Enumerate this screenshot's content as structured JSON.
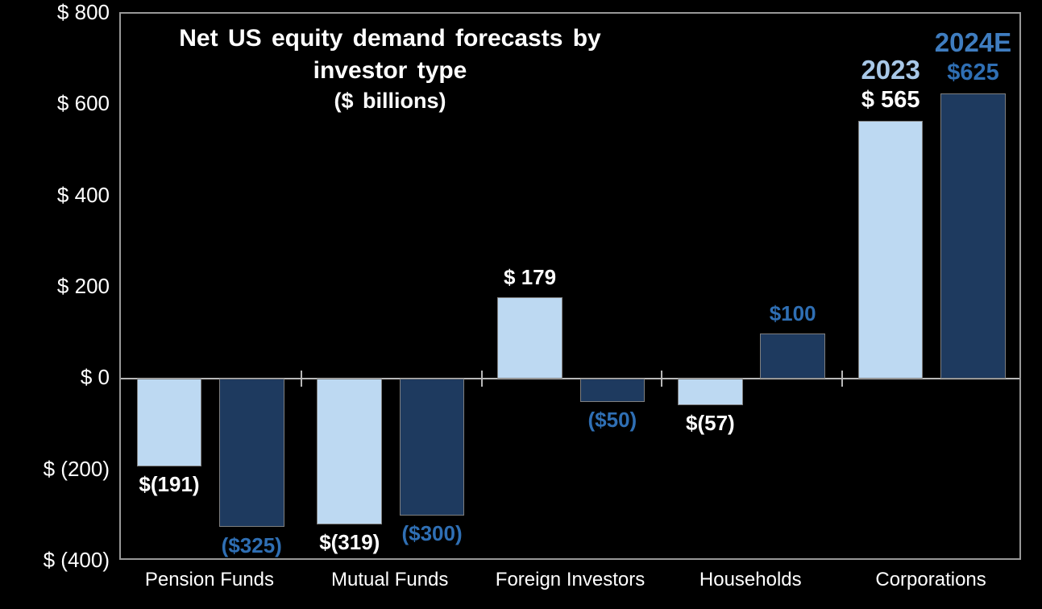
{
  "chart_data": {
    "type": "bar",
    "title": "Net US equity demand forecasts by investor type ($ billions)",
    "title_lines": [
      "Net US equity demand forecasts by",
      "investor type",
      "($ billions)"
    ],
    "categories": [
      "Pension Funds",
      "Mutual Funds",
      "Foreign Investors",
      "Households",
      "Corporations"
    ],
    "series": [
      {
        "name": "2023",
        "fill": "#bdd9f2",
        "bar_border": "#7f7f7f",
        "label_color": "#ffffff",
        "name_color": "#a8c8e8",
        "values": [
          -191,
          -319,
          179,
          -57,
          565
        ],
        "labels": [
          "$(191)",
          "$(319)",
          "$ 179",
          "$(57)",
          "$ 565"
        ]
      },
      {
        "name": "2024E",
        "fill": "#1e3a5f",
        "bar_border": "#7f7f7f",
        "label_color": "#2f6fb4",
        "name_color": "#3f7dc0",
        "values": [
          -325,
          -300,
          -50,
          100,
          625
        ],
        "labels": [
          "($325)",
          "($300)",
          "($50)",
          "$100",
          "$625"
        ]
      }
    ],
    "y_axis": {
      "min": -400,
      "max": 800,
      "tick_values": [
        800,
        600,
        400,
        200,
        0,
        -200,
        -400
      ],
      "tick_labels": [
        "$ 800",
        "$ 600",
        "$ 400",
        "$ 200",
        "$ 0",
        "$ (200)",
        "$ (400)"
      ]
    },
    "legend_position": "above-last-category-bars",
    "grid": "zero-line-only",
    "background": "#000000",
    "plot_border_color": "#989898",
    "axis_line_color": "#b8b8b8"
  }
}
